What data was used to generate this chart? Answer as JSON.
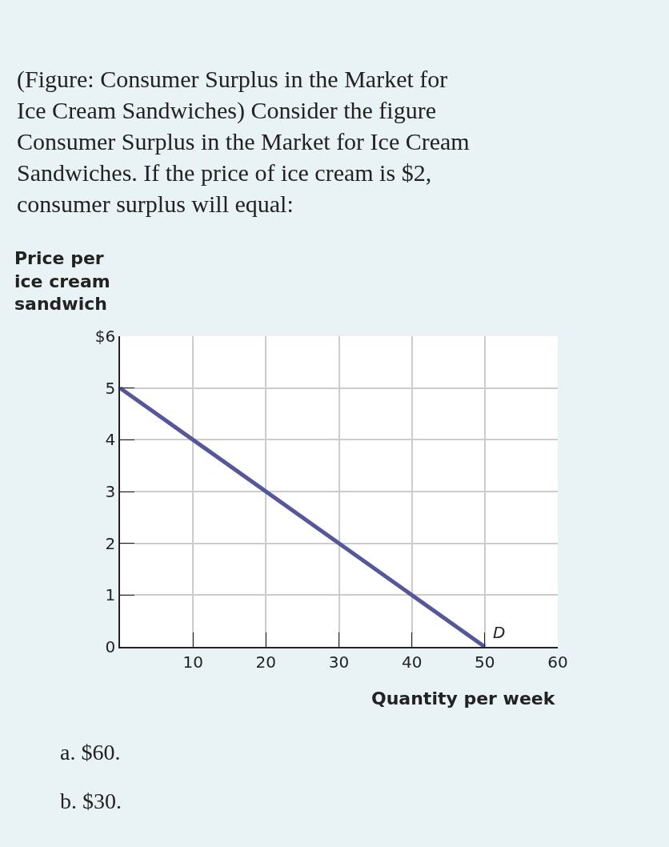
{
  "chart_data": {
    "type": "line",
    "title": "(Figure: Consumer Surplus in the Market for Ice Cream Sandwiches) Consider the figure Consumer Surplus in the Market for Ice Cream Sandwiches. If the price of ice cream is $2, consumer surplus will equal:",
    "xlabel": "Quantity per week",
    "ylabel": "Price per ice cream sandwich",
    "series": [
      {
        "color": "#56569e",
        "x": [
          0,
          50
        ],
        "values": [
          5,
          0
        ]
      }
    ],
    "xlim": [
      0,
      60
    ],
    "xticks": [
      10,
      20,
      30,
      40,
      50,
      60
    ],
    "ylim": [
      0,
      6
    ],
    "yticks": [
      0,
      1,
      2,
      3,
      4,
      5,
      {
        "value": 6,
        "label": "$6"
      }
    ],
    "grid": true,
    "marker": "none",
    "line_style": "solid",
    "annotations": [
      {
        "text": "D",
        "x": 50,
        "y": 0
      },
      "a. $60.",
      "b. $30."
    ]
  }
}
